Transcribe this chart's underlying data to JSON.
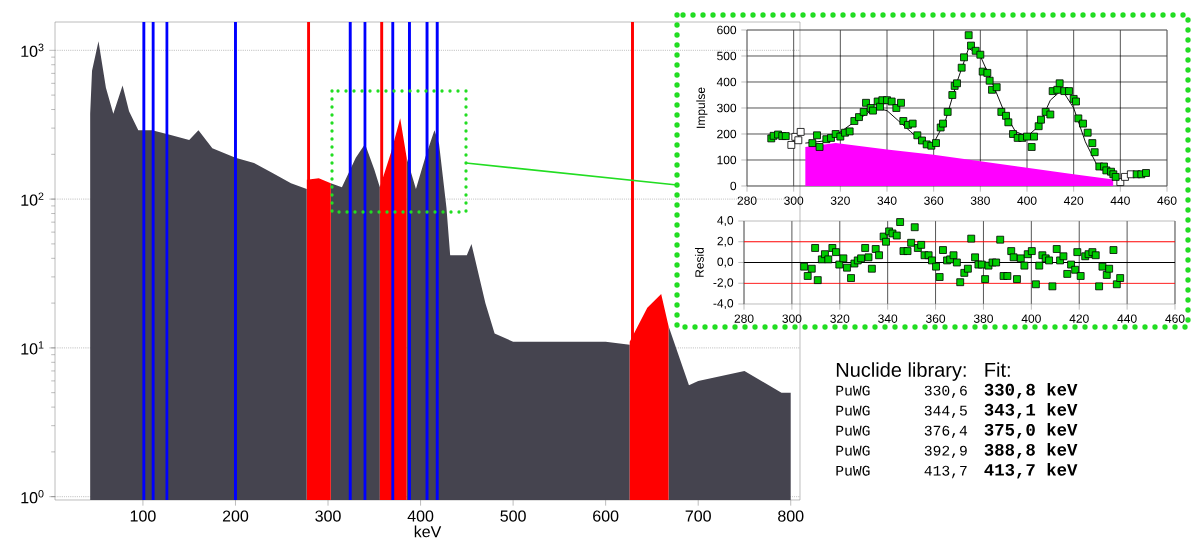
{
  "chart_data": [
    {
      "type": "area",
      "xlabel": "keV",
      "log": "y",
      "xlim": [
        5,
        810
      ],
      "ylim": [
        0.95,
        1550
      ],
      "xticks": [
        100,
        200,
        300,
        400,
        500,
        600,
        700,
        800
      ],
      "yticks": [
        {
          "value": 1,
          "label": "10$^{0}$"
        },
        {
          "value": 10,
          "label": "10$^{1}$"
        },
        {
          "value": 100,
          "label": "10$^{2}$"
        },
        {
          "value": 1000,
          "label": "10$^{3}$"
        }
      ],
      "grid": "y",
      "series": [
        {
          "color": "#45444f",
          "x": [
            43,
            45,
            52,
            60,
            68,
            78,
            85,
            95,
            110,
            130,
            150,
            160,
            175,
            200,
            220,
            240,
            260,
            277,
            290,
            303,
            315,
            330,
            340,
            350,
            356,
            370,
            385,
            395,
            405,
            415,
            420,
            428,
            432,
            450,
            455,
            470,
            480,
            500,
            550,
            600,
            626,
            650,
            668,
            690,
            700,
            750,
            790,
            800
          ],
          "values": [
            375,
            730,
            1150,
            560,
            375,
            580,
            390,
            290,
            290,
            270,
            250,
            290,
            220,
            190,
            175,
            150,
            128,
            117,
            null,
            128,
            120,
            190,
            235,
            158,
            120,
            null,
            190,
            117,
            190,
            290,
            235,
            87,
            42,
            42,
            50,
            20,
            12.5,
            11,
            11,
            11,
            10.5,
            null,
            14,
            5.6,
            6,
            7,
            5,
            5
          ]
        },
        {
          "color": "#ff0000",
          "x": [
            277,
            290,
            303,
            330,
            356,
            368,
            378,
            385,
            500,
            626,
            645,
            660,
            668
          ],
          "values": [
            135,
            138,
            128,
            null,
            120,
            205,
            350,
            190,
            null,
            11,
            18.6,
            23,
            14
          ]
        }
      ],
      "ref_lines": [
        {
          "axis": "x",
          "value": 101,
          "color": "#0000ff"
        },
        {
          "axis": "x",
          "value": 111,
          "color": "#0000ff"
        },
        {
          "axis": "x",
          "value": 126,
          "color": "#0000ff"
        },
        {
          "axis": "x",
          "value": 200,
          "color": "#0000ff"
        },
        {
          "axis": "x",
          "value": 324,
          "color": "#0000ff"
        },
        {
          "axis": "x",
          "value": 340,
          "color": "#0000ff"
        },
        {
          "axis": "x",
          "value": 370,
          "color": "#0000ff"
        },
        {
          "axis": "x",
          "value": 388,
          "color": "#0000ff"
        },
        {
          "axis": "x",
          "value": 407,
          "color": "#0000ff"
        },
        {
          "axis": "x",
          "value": 418,
          "color": "#0000ff"
        },
        {
          "axis": "x",
          "value": 279,
          "color": "#ff0000"
        },
        {
          "axis": "x",
          "value": 358,
          "color": "#ff0000"
        },
        {
          "axis": "x",
          "value": 629,
          "color": "#ff0000"
        }
      ]
    },
    {
      "type": "scatter",
      "ylabel": "Impulse",
      "xlim": [
        280,
        460
      ],
      "ylim": [
        0,
        600
      ],
      "xticks": [
        280,
        300,
        320,
        340,
        360,
        380,
        400,
        420,
        440,
        460
      ],
      "yticks": [
        0,
        100,
        200,
        300,
        400,
        500,
        600
      ],
      "grid": true,
      "marker": "square",
      "series": [
        {
          "type": "area",
          "marker": "none",
          "color": "#ff00ff",
          "x": [
            305,
            318,
            340,
            360,
            380,
            400,
            420,
            437
          ],
          "values": [
            150,
            165,
            140,
            120,
            95,
            70,
            45,
            25
          ]
        },
        {
          "type": "line",
          "marker": "none",
          "color": "#000000",
          "x": [
            305,
            315,
            325,
            335,
            340,
            345,
            350,
            355,
            360,
            365,
            370,
            375,
            380,
            385,
            390,
            395,
            400,
            405,
            410,
            415,
            420,
            425,
            430,
            435,
            438
          ],
          "values": [
            165,
            175,
            240,
            300,
            290,
            250,
            210,
            170,
            165,
            250,
            400,
            530,
            500,
            400,
            290,
            210,
            190,
            230,
            330,
            370,
            300,
            170,
            80,
            50,
            40
          ]
        },
        {
          "color": "#ffffff",
          "x": [
            299,
            300.7,
            302,
            303,
            440,
            442,
            444.5
          ],
          "values": [
            158,
            189,
            176,
            208,
            15,
            35,
            45
          ]
        },
        {
          "color": "#00cc00",
          "x": [
            290.4,
            291.4,
            293.3,
            295.1,
            296.6,
            308,
            310,
            311.1,
            314,
            316,
            318,
            320,
            322,
            324,
            326,
            328,
            330,
            331,
            333,
            334,
            336,
            337,
            338,
            340,
            342,
            344,
            346,
            347,
            349,
            351,
            353,
            355,
            357,
            359,
            361,
            363,
            364,
            366,
            368,
            369,
            370,
            372,
            373,
            375,
            376,
            378,
            380,
            381,
            383,
            384,
            385,
            387,
            389,
            391,
            392,
            394,
            396,
            398,
            400,
            402,
            403,
            405,
            406,
            408,
            410,
            411,
            413,
            414,
            416,
            418,
            420,
            421,
            422,
            424,
            426,
            428,
            429,
            431,
            433,
            434,
            436,
            437,
            438,
            447,
            449,
            451
          ],
          "values": [
            183,
            193,
            198,
            192,
            192,
            165,
            195,
            150,
            180,
            185,
            200,
            190,
            205,
            210,
            250,
            265,
            285,
            320,
            300,
            290,
            325,
            305,
            330,
            330,
            325,
            300,
            320,
            250,
            235,
            240,
            195,
            175,
            160,
            155,
            165,
            225,
            240,
            285,
            350,
            385,
            395,
            455,
            495,
            580,
            540,
            520,
            505,
            440,
            435,
            405,
            370,
            380,
            285,
            270,
            245,
            200,
            185,
            185,
            190,
            150,
            190,
            230,
            255,
            285,
            275,
            365,
            370,
            395,
            365,
            365,
            335,
            325,
            260,
            240,
            205,
            165,
            130,
            75,
            75,
            60,
            55,
            45,
            35,
            45,
            45,
            50
          ]
        }
      ]
    },
    {
      "type": "scatter",
      "ylabel": "Resid",
      "xlim": [
        280,
        460
      ],
      "ylim": [
        -4,
        4
      ],
      "xticks": [
        280,
        300,
        320,
        340,
        360,
        380,
        400,
        420,
        440,
        460
      ],
      "yticks": [
        {
          "value": -4,
          "label": "-4,0"
        },
        {
          "value": -2,
          "label": "-2,0"
        },
        {
          "value": 0,
          "label": "0,0"
        },
        {
          "value": 2,
          "label": "2,0"
        },
        {
          "value": 4,
          "label": "4,0"
        }
      ],
      "grid": "x",
      "marker": "square",
      "ref_lines": [
        {
          "axis": "y",
          "value": 2,
          "color": "#ff0000"
        },
        {
          "axis": "y",
          "value": -2,
          "color": "#ff0000"
        },
        {
          "axis": "y",
          "value": 0,
          "color": "#000000"
        }
      ],
      "series": [
        {
          "color": "#00cc00",
          "x": [
            305.1,
            306.6,
            308.3,
            309.7,
            310.8,
            312.5,
            313.8,
            315.2,
            316.9,
            318.4,
            319.8,
            321.5,
            323,
            324.7,
            326.1,
            327.5,
            328.9,
            330.6,
            332,
            333.4,
            335,
            336.4,
            338.3,
            339.3,
            340.6,
            342,
            343.8,
            345.2,
            346.6,
            348.3,
            349.8,
            351.3,
            352.6,
            354,
            355.4,
            357.1,
            358.5,
            360.2,
            361.7,
            363.1,
            364.8,
            366.1,
            367.5,
            368.9,
            370.3,
            372,
            373.5,
            374.9,
            376.5,
            377.9,
            379.3,
            380.7,
            382.1,
            383.8,
            385.3,
            387,
            388.4,
            390,
            391.6,
            392.6,
            394,
            395.6,
            397.1,
            398.5,
            400.2,
            401.9,
            403.3,
            404.6,
            406,
            407.4,
            408.8,
            410.6,
            412,
            413.4,
            415,
            416.6,
            418.3,
            419.2,
            420.6,
            422.5,
            423.9,
            425.5,
            426.9,
            428.3,
            429.7,
            431.5,
            432.5,
            434.3,
            435.7,
            437.1
          ],
          "values": [
            -0.4,
            -1.3,
            -0.6,
            1.4,
            -1.7,
            0.3,
            0.8,
            0.3,
            1.4,
            1.0,
            -0.2,
            0.4,
            -0.5,
            -1.5,
            -0.1,
            0.2,
            0.4,
            1.4,
            0.5,
            -0.6,
            1.3,
            0.7,
            2.5,
            2.0,
            3.0,
            2.8,
            2.6,
            3.9,
            1.1,
            1.1,
            1.9,
            3.4,
            1.4,
            1.7,
            0.7,
            0.7,
            0.2,
            -0.4,
            -1.4,
            1.2,
            0.2,
            0.3,
            0.7,
            0.0,
            -1.9,
            -1.0,
            -0.6,
            2.3,
            0.5,
            -0.2,
            -0.2,
            -1.6,
            -0.3,
            0.0,
            0.0,
            2.2,
            -1.3,
            -1.3,
            1.1,
            0.5,
            -1.6,
            0.4,
            -0.3,
            0.8,
            1.1,
            -2.1,
            -0.3,
            0.7,
            0.4,
            0.2,
            -2.3,
            1.3,
            0.2,
            0.6,
            -1.1,
            -0.2,
            -0.7,
            1.0,
            -1.3,
            0.6,
            0.8,
            1.0,
            0.7,
            -2.3,
            -0.4,
            -1.2,
            -0.6,
            1.2,
            -2.1,
            -1.5
          ]
        }
      ]
    },
    {
      "type": "other",
      "annotations": [
        "Nuclide library:",
        "Fit:",
        "PuWG",
        "330,6",
        "330,8 keV",
        "PuWG",
        "344,5",
        "343,1 keV",
        "PuWG",
        "376,4",
        "375,0 keV",
        "PuWG",
        "392,9",
        "388,8 keV",
        "PuWG",
        "413,7",
        "413,7 keV"
      ]
    }
  ]
}
